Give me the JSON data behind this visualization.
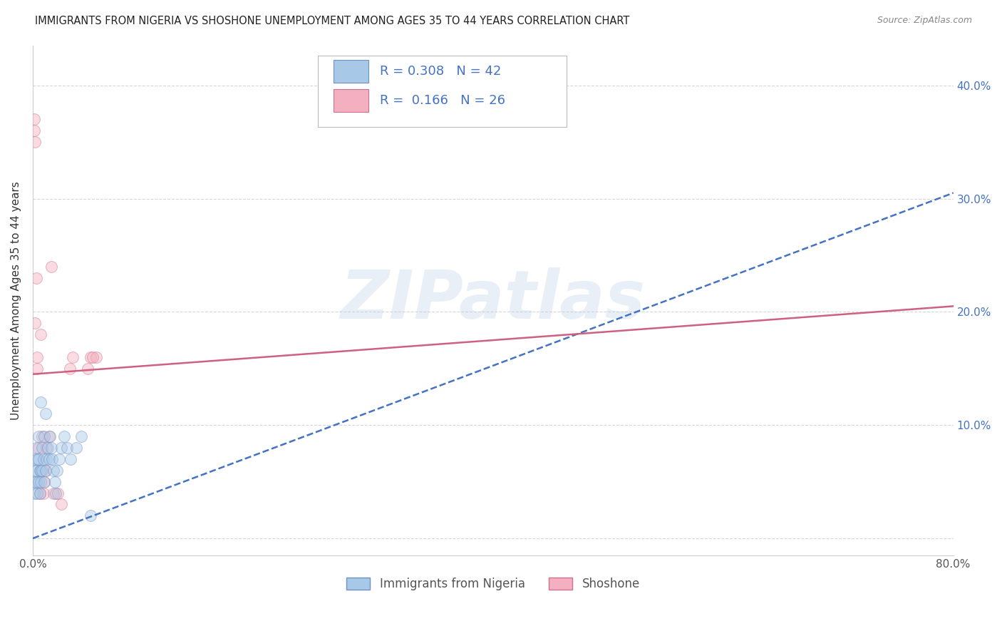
{
  "title": "IMMIGRANTS FROM NIGERIA VS SHOSHONE UNEMPLOYMENT AMONG AGES 35 TO 44 YEARS CORRELATION CHART",
  "source": "Source: ZipAtlas.com",
  "ylabel": "Unemployment Among Ages 35 to 44 years",
  "xlim": [
    0,
    0.8
  ],
  "ylim": [
    -0.015,
    0.435
  ],
  "xticks": [
    0.0,
    0.1,
    0.2,
    0.3,
    0.4,
    0.5,
    0.6,
    0.7,
    0.8
  ],
  "xticklabels": [
    "0.0%",
    "",
    "",
    "",
    "",
    "",
    "",
    "",
    "80.0%"
  ],
  "yticks": [
    0.0,
    0.1,
    0.2,
    0.3,
    0.4
  ],
  "yticklabels": [
    "",
    "10.0%",
    "20.0%",
    "30.0%",
    "40.0%"
  ],
  "nigeria_color": "#a8c8e8",
  "shoshone_color": "#f4b0c0",
  "nigeria_edge": "#7090c0",
  "shoshone_edge": "#d07090",
  "nigeria_line_color": "#4472c4",
  "shoshone_line_color": "#d06080",
  "legend_color": "#4472c4",
  "R_nigeria": 0.308,
  "N_nigeria": 42,
  "R_shoshone": 0.166,
  "N_shoshone": 26,
  "nigeria_x": [
    0.001,
    0.001,
    0.002,
    0.002,
    0.003,
    0.003,
    0.003,
    0.004,
    0.004,
    0.005,
    0.005,
    0.005,
    0.006,
    0.006,
    0.007,
    0.007,
    0.007,
    0.008,
    0.008,
    0.009,
    0.01,
    0.01,
    0.011,
    0.011,
    0.012,
    0.013,
    0.014,
    0.015,
    0.016,
    0.017,
    0.018,
    0.019,
    0.02,
    0.021,
    0.023,
    0.025,
    0.027,
    0.03,
    0.033,
    0.038,
    0.042,
    0.05
  ],
  "nigeria_y": [
    0.04,
    0.06,
    0.05,
    0.07,
    0.05,
    0.06,
    0.08,
    0.04,
    0.07,
    0.05,
    0.07,
    0.09,
    0.04,
    0.06,
    0.05,
    0.06,
    0.12,
    0.06,
    0.08,
    0.07,
    0.05,
    0.09,
    0.06,
    0.11,
    0.07,
    0.08,
    0.07,
    0.09,
    0.08,
    0.07,
    0.06,
    0.05,
    0.04,
    0.06,
    0.07,
    0.08,
    0.09,
    0.08,
    0.07,
    0.08,
    0.09,
    0.02
  ],
  "shoshone_x": [
    0.001,
    0.001,
    0.002,
    0.002,
    0.003,
    0.004,
    0.004,
    0.005,
    0.006,
    0.007,
    0.008,
    0.009,
    0.01,
    0.011,
    0.012,
    0.014,
    0.016,
    0.018,
    0.05,
    0.055,
    0.032,
    0.035,
    0.022,
    0.025,
    0.048,
    0.052
  ],
  "shoshone_y": [
    0.37,
    0.36,
    0.35,
    0.19,
    0.23,
    0.15,
    0.16,
    0.08,
    0.04,
    0.18,
    0.09,
    0.04,
    0.05,
    0.06,
    0.08,
    0.09,
    0.24,
    0.04,
    0.16,
    0.16,
    0.15,
    0.16,
    0.04,
    0.03,
    0.15,
    0.16
  ],
  "nigeria_line_x0": 0.0,
  "nigeria_line_y0": 0.0,
  "nigeria_line_x1": 0.8,
  "nigeria_line_y1": 0.305,
  "shoshone_line_x0": 0.0,
  "shoshone_line_y0": 0.145,
  "shoshone_line_x1": 0.8,
  "shoshone_line_y1": 0.205,
  "watermark_text": "ZIPatlas",
  "legend_label_nigeria": "Immigrants from Nigeria",
  "legend_label_shoshone": "Shoshone",
  "marker_size": 130,
  "marker_alpha": 0.45
}
